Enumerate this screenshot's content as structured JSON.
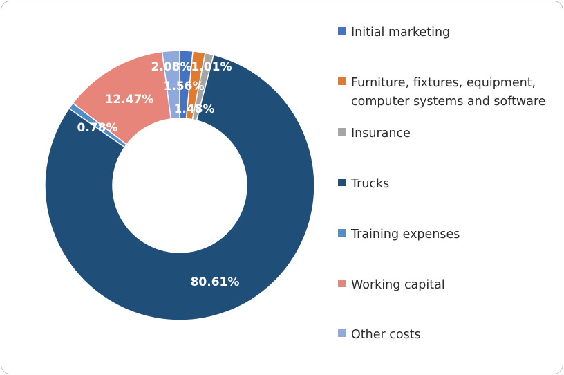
{
  "chart_data": {
    "type": "pie",
    "style": "donut",
    "categories": [
      "Initial marketing",
      "Furniture, fixtures, equipment, computer systems and software",
      "Insurance",
      "Trucks",
      "Training expenses",
      "Working capital",
      "Other costs"
    ],
    "values": [
      1.56,
      1.48,
      1.01,
      80.61,
      0.78,
      12.47,
      2.08
    ],
    "data_labels": [
      "1.56%",
      "1.48%",
      "1.01%",
      "80.61%",
      "0.78%",
      "12.47%",
      "2.08%"
    ],
    "colors": [
      "#4472c4",
      "#e07a2e",
      "#a5a5a5",
      "#1f4e79",
      "#4f8ec9",
      "#e8857a",
      "#8fa9dc"
    ],
    "legend_position": "right",
    "start_angle_deg": 0,
    "direction": "clockwise"
  }
}
